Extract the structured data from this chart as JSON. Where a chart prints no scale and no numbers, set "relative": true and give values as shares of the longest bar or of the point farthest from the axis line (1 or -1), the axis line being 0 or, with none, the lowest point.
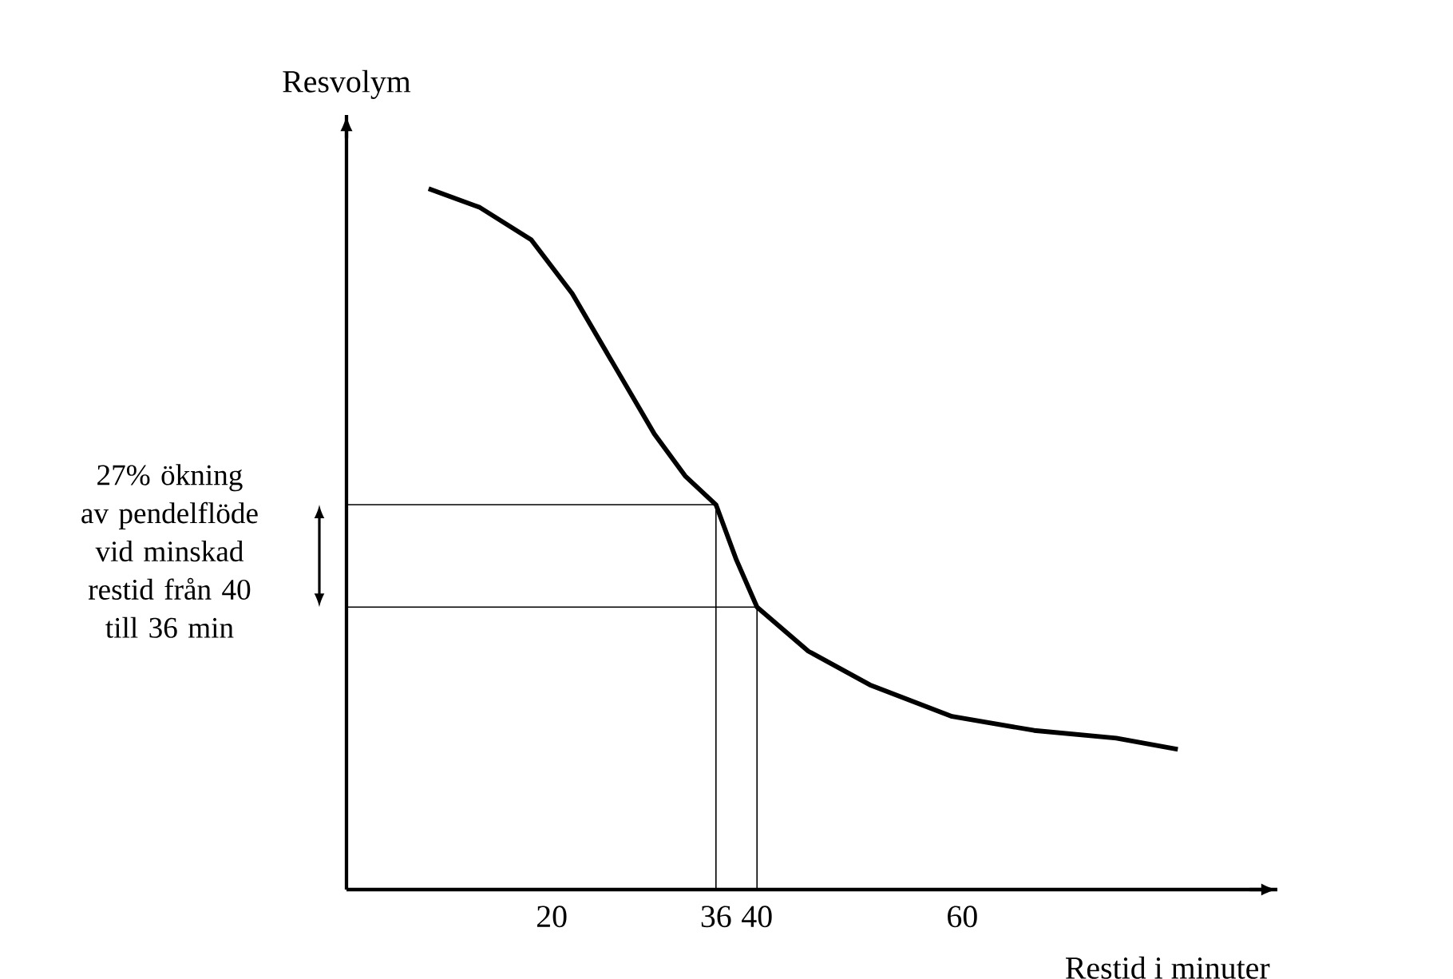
{
  "chart_data": {
    "type": "line",
    "relative": true,
    "xlabel": "Restid i minuter",
    "ylabel": "Resvolym",
    "xlim": [
      0,
      90.7
    ],
    "xticks": [
      20,
      36,
      40,
      60
    ],
    "series": [
      {
        "color": "#000000",
        "x": [
          8,
          13,
          18,
          22,
          26,
          30,
          33,
          36,
          38,
          40,
          45,
          51,
          59,
          67,
          75,
          81
        ],
        "values": [
          1.0,
          0.973,
          0.927,
          0.85,
          0.75,
          0.65,
          0.59,
          0.549,
          0.47,
          0.403,
          0.34,
          0.292,
          0.247,
          0.227,
          0.216,
          0.2
        ]
      },
      {
        "color": "#000000",
        "x": [
          0,
          36,
          36
        ],
        "values": [
          0.549,
          0.549,
          0
        ]
      },
      {
        "color": "#000000",
        "x": [
          0,
          40,
          40
        ],
        "values": [
          0.403,
          0.403,
          0
        ]
      }
    ],
    "annotations": [
      "27% ökning av pendelflöde vid minskad restid från 40 till 36 min"
    ]
  }
}
